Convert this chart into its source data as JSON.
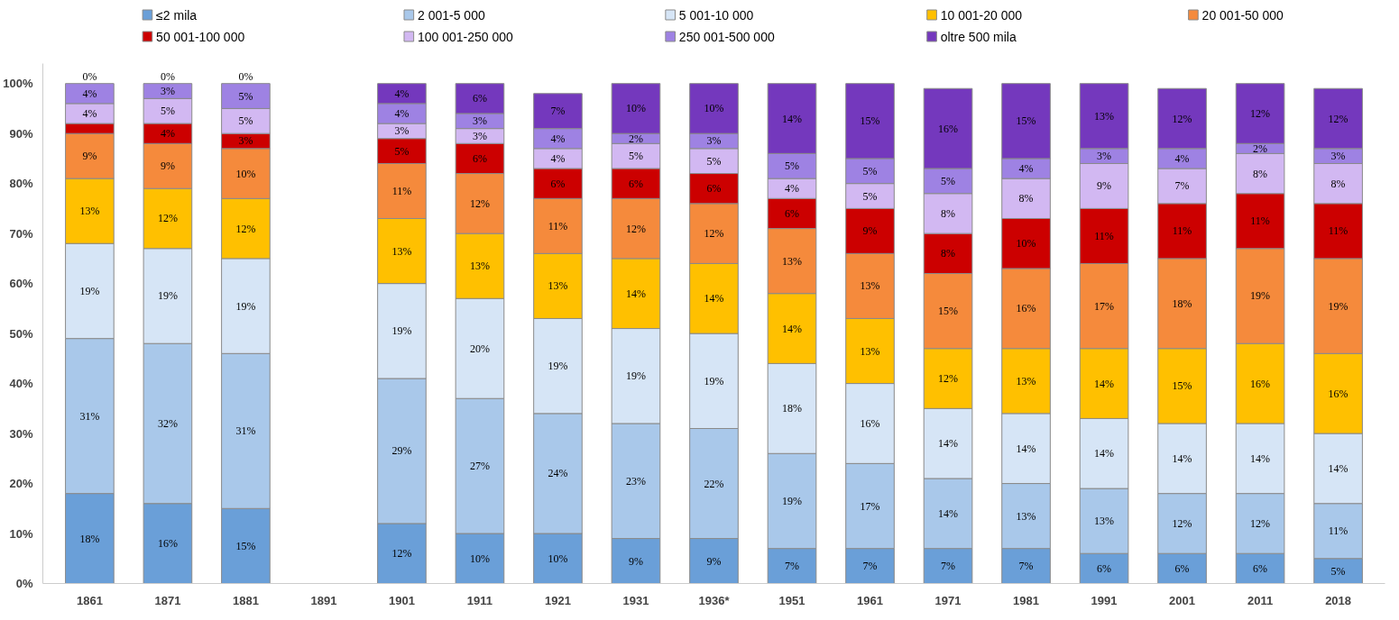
{
  "chart_data": {
    "type": "bar",
    "stacked": true,
    "categories": [
      "1861",
      "1871",
      "1881",
      "1891",
      "1901",
      "1911",
      "1921",
      "1931",
      "1936*",
      "1951",
      "1961",
      "1971",
      "1981",
      "1991",
      "2001",
      "2011",
      "2018"
    ],
    "ylim": [
      0,
      104
    ],
    "yticks": [
      {
        "value": 0,
        "label": "0%"
      },
      {
        "value": 10,
        "label": "10%"
      },
      {
        "value": 20,
        "label": "20%"
      },
      {
        "value": 30,
        "label": "30%"
      },
      {
        "value": 40,
        "label": "40%"
      },
      {
        "value": 50,
        "label": "50%"
      },
      {
        "value": 60,
        "label": "60%"
      },
      {
        "value": 70,
        "label": "70%"
      },
      {
        "value": 80,
        "label": "80%"
      },
      {
        "value": 90,
        "label": "90%"
      },
      {
        "value": 100,
        "label": "100%"
      }
    ],
    "grid": false,
    "legend": "top",
    "series": [
      {
        "name": "≤2 mila",
        "color": "#6a9fd8",
        "values": [
          18,
          16,
          15,
          null,
          12,
          10,
          10,
          9,
          9,
          7,
          7,
          7,
          7,
          6,
          6,
          6,
          5
        ],
        "value_labels": [
          "18%",
          "16%",
          "15%",
          null,
          "12%",
          "10%",
          "10%",
          "9%",
          "9%",
          "7%",
          "7%",
          "7%",
          "7%",
          "6%",
          "6%",
          "6%",
          "5%"
        ]
      },
      {
        "name": "2 001-5 000",
        "color": "#a9c8ea",
        "values": [
          31,
          32,
          31,
          null,
          29,
          27,
          24,
          23,
          22,
          19,
          17,
          14,
          13,
          13,
          12,
          12,
          11
        ],
        "value_labels": [
          "31%",
          "32%",
          "31%",
          null,
          "29%",
          "27%",
          "24%",
          "23%",
          "22%",
          "19%",
          "17%",
          "14%",
          "13%",
          "13%",
          "12%",
          "12%",
          "11%"
        ]
      },
      {
        "name": "5 001-10 000",
        "color": "#d6e5f6",
        "values": [
          19,
          19,
          19,
          null,
          19,
          20,
          19,
          19,
          19,
          18,
          16,
          14,
          14,
          14,
          14,
          14,
          14
        ],
        "value_labels": [
          "19%",
          "19%",
          "19%",
          null,
          "19%",
          "20%",
          "19%",
          "19%",
          "19%",
          "18%",
          "16%",
          "14%",
          "14%",
          "14%",
          "14%",
          "14%",
          "14%"
        ]
      },
      {
        "name": "10 001-20 000",
        "color": "#ffc000",
        "values": [
          13,
          12,
          12,
          null,
          13,
          13,
          13,
          14,
          14,
          14,
          13,
          12,
          13,
          14,
          15,
          16,
          16
        ],
        "value_labels": [
          "13%",
          "12%",
          "12%",
          null,
          "13%",
          "13%",
          "13%",
          "14%",
          "14%",
          "14%",
          "13%",
          "12%",
          "13%",
          "14%",
          "15%",
          "16%",
          "16%"
        ]
      },
      {
        "name": "20 001-50 000",
        "color": "#f58a3c",
        "values": [
          9,
          9,
          10,
          null,
          11,
          12,
          11,
          12,
          12,
          13,
          13,
          15,
          16,
          17,
          18,
          19,
          19
        ],
        "value_labels": [
          "9%",
          "9%",
          "10%",
          null,
          "11%",
          "12%",
          "11%",
          "12%",
          "12%",
          "13%",
          "13%",
          "15%",
          "16%",
          "17%",
          "18%",
          "19%",
          "19%"
        ]
      },
      {
        "name": "50 001-100 000",
        "color": "#cc0000",
        "values": [
          2,
          4,
          3,
          null,
          5,
          6,
          6,
          6,
          6,
          6,
          9,
          8,
          10,
          11,
          11,
          11,
          11
        ],
        "value_labels": [
          null,
          "4%",
          "3%",
          null,
          "5%",
          "6%",
          "6%",
          "6%",
          "6%",
          "6%",
          "9%",
          "8%",
          "10%",
          "11%",
          "11%",
          "11%",
          "11%"
        ]
      },
      {
        "name": "100 001-250 000",
        "color": "#d2b8f2",
        "values": [
          4,
          5,
          5,
          null,
          3,
          3,
          4,
          5,
          5,
          4,
          5,
          8,
          8,
          9,
          7,
          8,
          8
        ],
        "value_labels": [
          "4%",
          "5%",
          "5%",
          null,
          "3%",
          "3%",
          "4%",
          "5%",
          "5%",
          "4%",
          "5%",
          "8%",
          "8%",
          "9%",
          "7%",
          "8%",
          "8%"
        ]
      },
      {
        "name": "250 001-500 000",
        "color": "#9e82e3",
        "values": [
          4,
          3,
          5,
          null,
          4,
          3,
          4,
          2,
          3,
          5,
          5,
          5,
          4,
          3,
          4,
          2,
          3
        ],
        "value_labels": [
          "4%",
          "3%",
          "5%",
          null,
          "4%",
          "3%",
          "4%",
          "2%",
          "3%",
          "5%",
          "5%",
          "5%",
          "4%",
          "3%",
          "4%",
          "2%",
          "3%"
        ]
      },
      {
        "name": "oltre 500 mila",
        "color": "#7438bd",
        "values": [
          0,
          0,
          0,
          null,
          4,
          6,
          7,
          10,
          10,
          14,
          15,
          16,
          15,
          13,
          12,
          12,
          12
        ],
        "value_labels": [
          "0%",
          "0%",
          "0%",
          null,
          "4%",
          "6%",
          "7%",
          "10%",
          "10%",
          "14%",
          "15%",
          "16%",
          "15%",
          "13%",
          "12%",
          "12%",
          "12%"
        ]
      }
    ]
  }
}
